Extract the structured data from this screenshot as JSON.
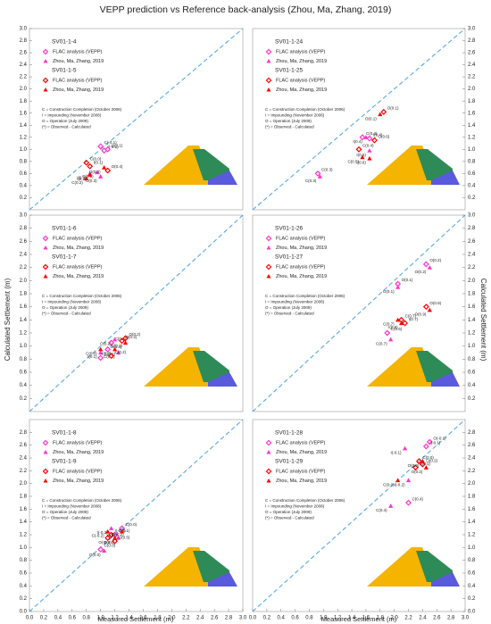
{
  "figure": {
    "title": "VEPP prediction vs Reference back-analysis (Zhou, Ma, Zhang, 2019)",
    "y_label": "Calculated Settlement (m)",
    "x_label": "Measured Settlement (m)"
  },
  "chart_data": [
    {
      "type": "scatter",
      "y_axis_side": "left",
      "xlim": [
        0,
        3
      ],
      "ylim": [
        0,
        3
      ],
      "yticks": [
        0.2,
        0.4,
        0.6,
        0.8,
        {
          "value": 1,
          "label": "1.0"
        },
        1.2,
        1.4,
        1.6,
        1.8,
        {
          "value": 2,
          "label": "2.0"
        },
        2.2,
        2.4,
        2.6,
        2.8,
        {
          "value": 3,
          "label": "3.0"
        }
      ],
      "groups": [
        {
          "title": "SV01-1-4",
          "series": [
            {
              "name": "FLAC analysis (VEPP)",
              "color": "#ff33cc",
              "marker": "diamond-open",
              "x": [
                1.0,
                1.05,
                1.1
              ],
              "values": [
                1.05,
                0.98,
                1.0
              ],
              "point_labels": [
                "C(-0.1)",
                "I(-0.1)",
                "O(0.1)"
              ]
            },
            {
              "name": "Zhou, Ma, Zhang, 2019",
              "color": "#ff33cc",
              "marker": "triangle",
              "x": [
                0.85,
                0.95,
                1.0
              ],
              "values": [
                0.6,
                0.62,
                0.55
              ],
              "point_labels": [
                "I(0.3)",
                "C(0.1)",
                "O(0.3)"
              ]
            }
          ]
        },
        {
          "title": "SV01-1-5",
          "series": [
            {
              "name": "FLAC analysis (VEPP)",
              "color": "#ff0000",
              "marker": "diamond-open",
              "x": [
                0.8,
                0.85,
                1.1
              ],
              "values": [
                0.78,
                0.72,
                0.65
              ],
              "point_labels": [
                "C(0.0)",
                "I(0.1)",
                "O(0.4)"
              ]
            },
            {
              "name": "Zhou, Ma, Zhang, 2019",
              "color": "#ff0000",
              "marker": "triangle",
              "x": [
                0.8,
                0.85,
                1.05
              ],
              "values": [
                0.52,
                0.58,
                0.7
              ],
              "point_labels": [
                "C(0.2)",
                "I(0.2)",
                "O(0.3)"
              ]
            }
          ]
        }
      ],
      "notes": [
        "C = Construction Completion (October 2006)",
        "I = Impounding (November 2008)",
        "O = Operation (July 2009)",
        "(*) = Observed - Calculated"
      ]
    },
    {
      "type": "scatter",
      "y_axis_side": "right",
      "xlim": [
        0,
        3
      ],
      "ylim": [
        0,
        3
      ],
      "yticks": [
        0.2,
        0.4,
        0.6,
        0.8,
        {
          "value": 1,
          "label": "1.0"
        },
        1.2,
        1.4,
        1.6,
        1.8,
        {
          "value": 2,
          "label": "2.0"
        },
        2.2,
        2.4,
        2.6,
        2.8,
        {
          "value": 3,
          "label": "3.0"
        }
      ],
      "groups": [
        {
          "title": "SV01-1-24",
          "series": [
            {
              "name": "FLAC analysis (VEPP)",
              "color": "#ff33cc",
              "marker": "diamond-open",
              "x": [
                1.55,
                1.65,
                0.92
              ],
              "values": [
                1.2,
                1.18,
                0.6
              ],
              "point_labels": [
                "C(0.4)",
                "I(0.4)",
                "C(0.3)"
              ]
            },
            {
              "name": "Zhou, Ma, Zhang, 2019",
              "color": "#ff33cc",
              "marker": "triangle",
              "x": [
                1.6,
                1.65,
                0.95
              ],
              "values": [
                1.2,
                0.98,
                0.55
              ],
              "point_labels": [
                "I(0.4)",
                "I(0.5)",
                "C(0.3)"
              ]
            }
          ]
        },
        {
          "title": "SV01-1-25",
          "series": [
            {
              "name": "FLAC analysis (VEPP)",
              "color": "#ff0000",
              "marker": "diamond-open",
              "x": [
                1.85,
                1.5,
                1.72
              ],
              "values": [
                1.62,
                1.0,
                1.15
              ],
              "point_labels": [
                "O(0.1)",
                "C(0.4)",
                "O(0.6)"
              ]
            },
            {
              "name": "Zhou, Ma, Zhang, 2019",
              "color": "#ff0000",
              "marker": "triangle",
              "x": [
                1.8,
                1.55,
                1.65
              ],
              "values": [
                1.58,
                0.87,
                0.85
              ],
              "point_labels": [
                "O(0.1)",
                "C(0.5)",
                "I(0.6)"
              ]
            }
          ]
        }
      ],
      "notes": [
        "C = Construction Completion (October 2006)",
        "I = Impounding (November 2008)",
        "O = Operation (July 2009)",
        "(*) = Observed - Calculated"
      ]
    },
    {
      "type": "scatter",
      "y_axis_side": "left",
      "xlim": [
        0,
        3
      ],
      "ylim": [
        0,
        3
      ],
      "yticks": [
        0.2,
        0.4,
        0.6,
        0.8,
        {
          "value": 1,
          "label": "1.0"
        },
        1.2,
        1.4,
        1.6,
        1.8,
        {
          "value": 2,
          "label": "2.0"
        },
        2.2,
        2.4,
        2.6,
        2.8,
        {
          "value": 3,
          "label": "3.0"
        }
      ],
      "groups": [
        {
          "title": "SV01-1-6",
          "series": [
            {
              "name": "FLAC analysis (VEPP)",
              "color": "#ff33cc",
              "marker": "diamond-open",
              "x": [
                1.15,
                1.1,
                1.0
              ],
              "values": [
                1.05,
                0.95,
                0.82
              ],
              "point_labels": [
                "C(0.1)",
                "C(0.1)",
                "C(0.1)"
              ]
            },
            {
              "name": "Zhou, Ma, Zhang, 2019",
              "color": "#ff33cc",
              "marker": "triangle",
              "x": [
                1.2,
                1.0,
                1.25
              ],
              "values": [
                1.1,
                0.9,
                0.9
              ],
              "point_labels": [
                "C(0.2)",
                "I(0.1)",
                "C(0.2)"
              ]
            }
          ]
        },
        {
          "title": "SV01-1-7",
          "series": [
            {
              "name": "FLAC analysis (VEPP)",
              "color": "#ff0000",
              "marker": "diamond-open",
              "x": [
                1.35,
                1.3,
                1.15
              ],
              "values": [
                1.12,
                1.08,
                0.85
              ],
              "point_labels": [
                "O(0.2)",
                "O(0.2)",
                "C(0.2)"
              ]
            },
            {
              "name": "Zhou, Ma, Zhang, 2019",
              "color": "#ff0000",
              "marker": "triangle",
              "x": [
                1.35,
                1.2,
                1.0
              ],
              "values": [
                1.05,
                0.95,
                0.95
              ],
              "point_labels": [
                "O(0.3)",
                "I(0.2)",
                "C(0.0)"
              ]
            }
          ]
        }
      ],
      "notes": [
        "C = Construction Completion (October 2006)",
        "I = Impounding (November 2008)",
        "O = Operation (July 2009)",
        "(*) = Observed - Calculated"
      ]
    },
    {
      "type": "scatter",
      "y_axis_side": "right",
      "xlim": [
        0,
        3
      ],
      "ylim": [
        0,
        3
      ],
      "yticks": [
        0.2,
        0.4,
        0.6,
        0.8,
        {
          "value": 1,
          "label": "1.0"
        },
        1.2,
        1.4,
        1.6,
        1.8,
        {
          "value": 2,
          "label": "2.0"
        },
        2.2,
        2.4,
        2.6,
        2.8,
        {
          "value": 3,
          "label": "3.0"
        }
      ],
      "groups": [
        {
          "title": "SV01-1-26",
          "series": [
            {
              "name": "FLAC analysis (VEPP)",
              "color": "#ff33cc",
              "marker": "diamond-open",
              "x": [
                2.05,
                2.45,
                1.9
              ],
              "values": [
                1.95,
                2.25,
                1.2
              ],
              "point_labels": [
                "O(0.1)",
                "O(0.2)",
                "C(0.6)"
              ]
            },
            {
              "name": "Zhou, Ma, Zhang, 2019",
              "color": "#ff33cc",
              "marker": "triangle",
              "x": [
                2.05,
                2.5,
                1.95
              ],
              "values": [
                1.9,
                2.2,
                1.1
              ],
              "point_labels": [
                "O(0.1)",
                "O(0.2)",
                "C(0.7)"
              ]
            }
          ]
        },
        {
          "title": "SV01-1-27",
          "series": [
            {
              "name": "FLAC analysis (VEPP)",
              "color": "#ff0000",
              "marker": "diamond-open",
              "x": [
                2.45,
                2.1,
                2.15
              ],
              "values": [
                1.6,
                1.4,
                1.35
              ],
              "point_labels": [
                "O(0.9)",
                "C(0.7)",
                "I(0.7)"
              ]
            },
            {
              "name": "Zhou, Ma, Zhang, 2019",
              "color": "#ff0000",
              "marker": "triangle",
              "x": [
                2.5,
                2.1,
                2.05
              ],
              "values": [
                1.55,
                1.35,
                1.4
              ],
              "point_labels": [
                "O(0.9)",
                "I(0.8)",
                "C(0.7)"
              ]
            }
          ]
        }
      ],
      "notes": [
        "C = Construction Completion (October 2006)",
        "I = Impounding (November 2008)",
        "O = Operation (July 2009)",
        "(*) = Observed - Calculated"
      ]
    },
    {
      "type": "scatter",
      "y_axis_side": "left",
      "xlim": [
        0,
        3
      ],
      "ylim": [
        0,
        3
      ],
      "xticks": [
        {
          "value": 0,
          "label": "0.0"
        },
        0.2,
        0.4,
        0.6,
        0.8,
        {
          "value": 1,
          "label": "1.0"
        },
        1.2,
        1.4,
        1.6,
        1.8,
        {
          "value": 2,
          "label": "2.0"
        },
        2.2,
        2.4,
        2.6,
        2.8,
        {
          "value": 3,
          "label": "3.0"
        }
      ],
      "yticks": [
        {
          "value": 0,
          "label": "0.0"
        },
        0.2,
        0.4,
        0.6,
        0.8,
        {
          "value": 1,
          "label": "1.0"
        },
        1.2,
        1.4,
        1.6,
        1.8,
        {
          "value": 2,
          "label": "2.0"
        },
        2.2,
        2.4,
        2.6,
        2.8
      ],
      "groups": [
        {
          "title": "SV01-1-8",
          "series": [
            {
              "name": "FLAC analysis (VEPP)",
              "color": "#ff33cc",
              "marker": "diamond-open",
              "x": [
                1.3,
                1.2,
                1.0
              ],
              "values": [
                1.3,
                1.2,
                0.97
              ],
              "point_labels": [
                "C(0.0)",
                "O(0.1)",
                "C(0.0)"
              ]
            },
            {
              "name": "Zhou, Ma, Zhang, 2019",
              "color": "#ff33cc",
              "marker": "triangle",
              "x": [
                1.15,
                1.25,
                1.05
              ],
              "values": [
                1.3,
                1.15,
                0.95
              ],
              "point_labels": [
                "I(-0.2)",
                "O(0.0)",
                "O(0.0)"
              ]
            }
          ]
        },
        {
          "title": "SV01-1-9",
          "series": [
            {
              "name": "FLAC analysis (VEPP)",
              "color": "#ff0000",
              "marker": "diamond-open",
              "x": [
                1.15,
                1.1,
                1.2
              ],
              "values": [
                1.2,
                1.15,
                1.1
              ],
              "point_labels": [
                "I(-0.2)",
                "C(-0.2)",
                "O(0.5)"
              ]
            },
            {
              "name": "Zhou, Ma, Zhang, 2019",
              "color": "#ff0000",
              "marker": "triangle",
              "x": [
                1.1,
                1.3,
                1.2
              ],
              "values": [
                1.25,
                1.25,
                1.15
              ],
              "point_labels": [
                "C(-0.2)",
                "O(0.0)",
                "O(-0.2)"
              ]
            }
          ]
        }
      ],
      "notes": [
        "C = Construction Completion (October 2006)",
        "I = Impounding (November 2008)",
        "O = Operation (July 2009)",
        "(*) = Observed - Calculated"
      ]
    },
    {
      "type": "scatter",
      "y_axis_side": "right",
      "xlim": [
        0,
        3
      ],
      "ylim": [
        0,
        3
      ],
      "xticks": [
        {
          "value": 0,
          "label": "0.0"
        },
        0.2,
        0.4,
        0.6,
        0.8,
        {
          "value": 1,
          "label": "1.0"
        },
        1.2,
        1.4,
        1.6,
        1.8,
        {
          "value": 2,
          "label": "2.0"
        },
        2.2,
        2.4,
        2.6,
        2.8,
        {
          "value": 3,
          "label": "3.0"
        }
      ],
      "yticks": [
        {
          "value": 0,
          "label": "0.0"
        },
        0.2,
        0.4,
        0.6,
        0.8,
        {
          "value": 1,
          "label": "1.0"
        },
        1.2,
        1.4,
        1.6,
        1.8,
        {
          "value": 2,
          "label": "2.0"
        },
        2.2,
        2.4,
        2.6,
        2.8
      ],
      "groups": [
        {
          "title": "SV01-1-28",
          "series": [
            {
              "name": "FLAC analysis (VEPP)",
              "color": "#ff33cc",
              "marker": "diamond-open",
              "x": [
                2.5,
                2.45,
                2.2
              ],
              "values": [
                2.65,
                2.58,
                1.7
              ],
              "point_labels": [
                "O(-0.1)",
                "I(-0.1)",
                "C(0.4)"
              ]
            },
            {
              "name": "Zhou, Ma, Zhang, 2019",
              "color": "#ff33cc",
              "marker": "triangle",
              "x": [
                2.15,
                2.2,
                1.95
              ],
              "values": [
                2.55,
                2.05,
                1.65
              ],
              "point_labels": [
                "I(-0.1)",
                "I(-0.2)",
                "C(0.4)"
              ]
            }
          ]
        },
        {
          "title": "SV01-1-29",
          "series": [
            {
              "name": "FLAC analysis (VEPP)",
              "color": "#ff0000",
              "marker": "diamond-open",
              "x": [
                2.35,
                2.4,
                2.3
              ],
              "values": [
                2.35,
                2.3,
                2.25
              ],
              "point_labels": [
                "C(0.0)",
                "O(0.2)",
                "C(0.1)"
              ]
            },
            {
              "name": "Zhou, Ma, Zhang, 2019",
              "color": "#ff0000",
              "marker": "triangle",
              "x": [
                2.4,
                2.45,
                2.05
              ],
              "values": [
                2.35,
                2.25,
                2.05
              ],
              "point_labels": [
                "O(0.0)",
                "O(0.2)",
                "C(0.0)"
              ]
            }
          ]
        }
      ],
      "notes": [
        "C = Construction Completion (October 2006)",
        "I = Impounding (November 2008)",
        "O = Operation (July 2009)",
        "(*) = Observed - Calculated"
      ]
    }
  ]
}
